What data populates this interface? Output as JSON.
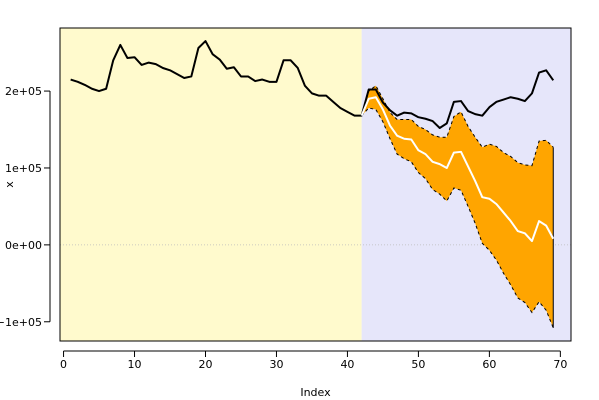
{
  "chart_data": {
    "type": "line",
    "title": "",
    "xlabel": "Index",
    "ylabel": "x",
    "xlim": [
      -0.5,
      71.5
    ],
    "ylim": [
      -125000,
      282000
    ],
    "x_ticks": [
      0,
      10,
      20,
      30,
      40,
      50,
      60,
      70
    ],
    "x_tick_labels": [
      "0",
      "10",
      "20",
      "30",
      "40",
      "50",
      "60",
      "70"
    ],
    "y_ticks": [
      -100000,
      0,
      100000,
      200000
    ],
    "y_tick_labels": [
      "−1e+05",
      "0e+00",
      "1e+05",
      "2e+05"
    ],
    "zero_line": 0,
    "grid": false,
    "legend": "none",
    "regions": [
      {
        "x_start": -0.5,
        "x_end": 42,
        "color": "#fffacd"
      },
      {
        "x_start": 42,
        "x_end": 71.5,
        "color": "#e6e6fa"
      }
    ],
    "series": [
      {
        "color": "#000000",
        "style": "solid",
        "x": [
          1,
          2,
          3,
          4,
          5,
          6,
          7,
          8,
          9,
          10,
          11,
          12,
          13,
          14,
          15,
          16,
          17,
          18,
          19,
          20,
          21,
          22,
          23,
          24,
          25,
          26,
          27,
          28,
          29,
          30,
          31,
          32,
          33,
          34,
          35,
          36,
          37,
          38,
          39,
          40,
          41,
          42,
          43,
          44,
          45,
          46,
          47,
          48,
          49,
          50,
          51,
          52,
          53,
          54,
          55,
          56,
          57,
          58,
          59,
          60,
          61,
          62,
          63,
          64,
          65,
          66,
          67,
          68,
          69
        ],
        "y": [
          215000,
          212000,
          208000,
          203000,
          200000,
          203000,
          240000,
          260000,
          243000,
          244000,
          234000,
          237000,
          235000,
          230000,
          227000,
          222000,
          217000,
          219000,
          256000,
          265000,
          248000,
          241000,
          229000,
          231000,
          219000,
          219000,
          213000,
          215000,
          212000,
          212000,
          240000,
          240000,
          230000,
          207000,
          197000,
          194000,
          194000,
          186000,
          178000,
          173000,
          168000,
          168000,
          202000,
          202000,
          185000,
          175000,
          168000,
          172000,
          171000,
          166000,
          164000,
          161000,
          152000,
          158000,
          186000,
          187000,
          174000,
          170000,
          168000,
          179000,
          186000,
          189000,
          192000,
          190000,
          187000,
          197000,
          224000,
          227000,
          214000
        ]
      },
      {
        "color": "#ffffff",
        "style": "solid",
        "x": [
          42,
          43,
          44,
          45,
          46,
          47,
          48,
          49,
          50,
          51,
          52,
          53,
          54,
          55,
          56,
          57,
          58,
          59,
          60,
          61,
          62,
          63,
          64,
          65,
          66,
          67,
          68,
          69
        ],
        "y": [
          168000,
          190000,
          192000,
          176000,
          155000,
          142000,
          138000,
          137000,
          123000,
          118000,
          108000,
          105000,
          100000,
          120000,
          121000,
          102000,
          83000,
          62000,
          60000,
          53000,
          42000,
          31000,
          18000,
          15000,
          5000,
          31000,
          25000,
          8000
        ]
      }
    ],
    "band": {
      "color": "#ffa500",
      "style": "dashed",
      "x": [
        42,
        43,
        44,
        45,
        46,
        47,
        48,
        49,
        50,
        51,
        52,
        53,
        54,
        55,
        56,
        57,
        58,
        59,
        60,
        61,
        62,
        63,
        64,
        65,
        66,
        67,
        68,
        69
      ],
      "upper": [
        168000,
        200000,
        207000,
        190000,
        172000,
        163000,
        163000,
        163000,
        154000,
        150000,
        143000,
        140000,
        140000,
        167000,
        173000,
        154000,
        140000,
        127000,
        131000,
        128000,
        120000,
        115000,
        107000,
        104000,
        103000,
        135000,
        136000,
        127000
      ],
      "lower": [
        168000,
        178000,
        176000,
        160000,
        138000,
        118000,
        112000,
        108000,
        94000,
        86000,
        72000,
        66000,
        57000,
        74000,
        71000,
        50000,
        28000,
        2000,
        -7000,
        -20000,
        -37000,
        -52000,
        -69000,
        -75000,
        -88000,
        -74000,
        -85000,
        -108000
      ]
    }
  }
}
